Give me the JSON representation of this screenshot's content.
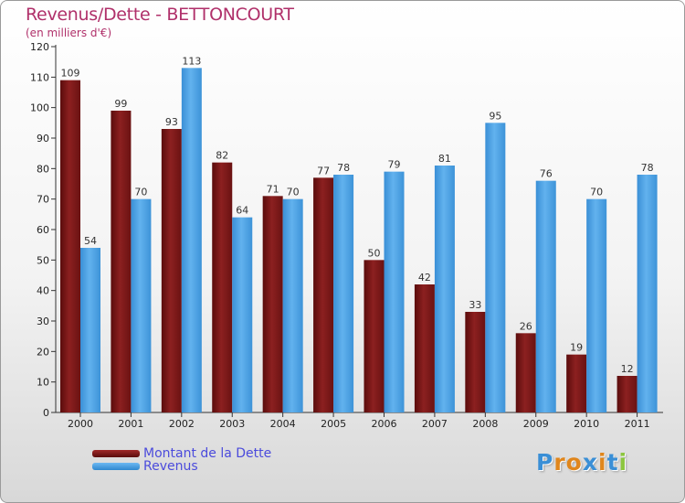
{
  "chart_data": {
    "type": "bar",
    "title": "Revenus/Dette - BETTONCOURT",
    "subtitle": "(en milliers d'€)",
    "categories": [
      "2000",
      "2001",
      "2002",
      "2003",
      "2004",
      "2005",
      "2006",
      "2007",
      "2008",
      "2009",
      "2010",
      "2011"
    ],
    "series": [
      {
        "name": "Montant de la Dette",
        "color": "#7a1414",
        "values": [
          109,
          99,
          93,
          82,
          71,
          77,
          50,
          42,
          33,
          26,
          19,
          12
        ]
      },
      {
        "name": "Revenus",
        "color": "#4a9fe0",
        "values": [
          54,
          70,
          113,
          64,
          70,
          78,
          79,
          81,
          95,
          76,
          70,
          78
        ]
      }
    ],
    "ylim": [
      0,
      120
    ],
    "yticks": [
      0,
      10,
      20,
      30,
      40,
      50,
      60,
      70,
      80,
      90,
      100,
      110,
      120
    ],
    "grid": false,
    "legend_position": "bottom-left",
    "data_labels": true
  },
  "logo": {
    "text": "Proxiti"
  }
}
